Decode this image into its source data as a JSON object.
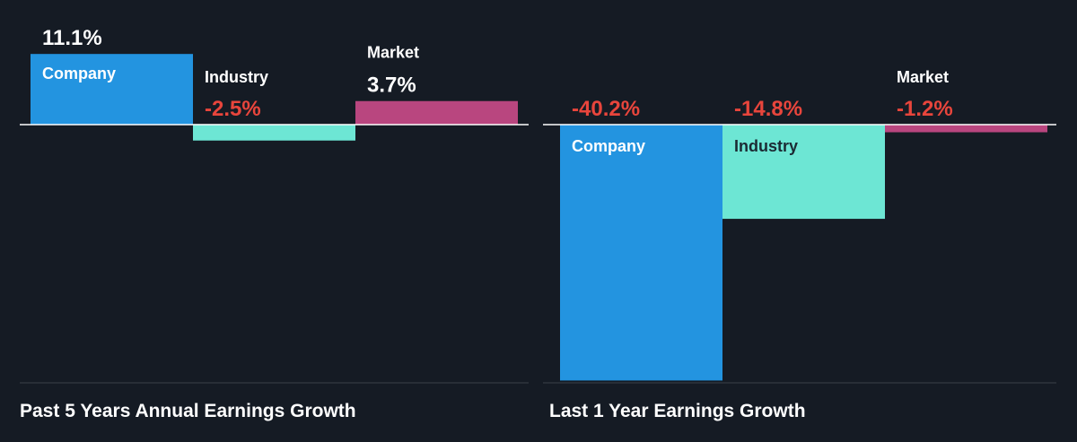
{
  "colors": {
    "background": "#151b24",
    "company": "#2394e0",
    "industry": "#6de6d4",
    "market": "#b9467f",
    "positive_text": "#ffffff",
    "negative_text": "#e8453c",
    "category_text": "#ffffff",
    "baseline": "#ffffff",
    "divider": "#3a4049"
  },
  "chart_data": [
    {
      "type": "bar",
      "title": "Past 5 Years Annual Earnings Growth",
      "categories": [
        "Company",
        "Industry",
        "Market"
      ],
      "values": [
        11.1,
        -2.5,
        3.7
      ],
      "value_labels": [
        "11.1%",
        "-2.5%",
        "3.7%"
      ],
      "unit": "%",
      "ylim": [
        -40.2,
        11.1
      ],
      "grid": false,
      "legend": "none"
    },
    {
      "type": "bar",
      "title": "Last 1 Year Earnings Growth",
      "categories": [
        "Company",
        "Industry",
        "Market"
      ],
      "values": [
        -40.2,
        -14.8,
        -1.2
      ],
      "value_labels": [
        "-40.2%",
        "-14.8%",
        "-1.2%"
      ],
      "unit": "%",
      "ylim": [
        -40.2,
        11.1
      ],
      "grid": false,
      "legend": "none"
    }
  ]
}
